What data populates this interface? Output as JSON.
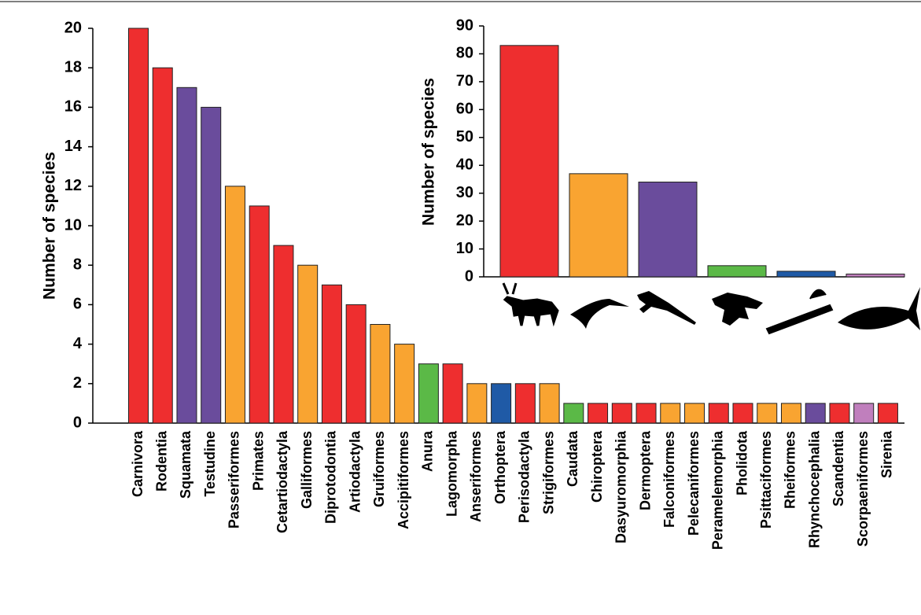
{
  "chart_data": [
    {
      "type": "bar",
      "y_label": "Number of species",
      "categories": [
        "Carnivora",
        "Rodentia",
        "Squamata",
        "Testudine",
        "Passeriformes",
        "Primates",
        "Cetartiodactyla",
        "Galliformes",
        "Diprotodontia",
        "Artiodactyla",
        "Gruiformes",
        "Accipitiformes",
        "Anura",
        "Lagomorpha",
        "Anseriformes",
        "Orthoptera",
        "Perisodactyla",
        "Strigiformes",
        "Caudata",
        "Chiroptera",
        "Dasyuromorphia",
        "Dermoptera",
        "Falconiformes",
        "Pelecaniformes",
        "Peramelemorphia",
        "Pholidota",
        "Psittaciformes",
        "Rheiformes",
        "Rhynchocephalia",
        "Scandentia",
        "Scorpaeniformes",
        "Sirenia"
      ],
      "values": [
        20,
        18,
        17,
        16,
        12,
        11,
        9,
        8,
        7,
        6,
        5,
        4,
        3,
        3,
        2,
        2,
        2,
        2,
        1,
        1,
        1,
        1,
        1,
        1,
        1,
        1,
        1,
        1,
        1,
        1,
        1,
        1
      ],
      "colors": [
        "#ee2e2f",
        "#ee2e2f",
        "#6a4c9c",
        "#6a4c9c",
        "#f9a431",
        "#ee2e2f",
        "#ee2e2f",
        "#f9a431",
        "#ee2e2f",
        "#ee2e2f",
        "#f9a431",
        "#f9a431",
        "#5bb947",
        "#ee2e2f",
        "#f9a431",
        "#1f5aa6",
        "#ee2e2f",
        "#f9a431",
        "#5bb947",
        "#ee2e2f",
        "#ee2e2f",
        "#ee2e2f",
        "#f9a431",
        "#f9a431",
        "#ee2e2f",
        "#ee2e2f",
        "#f9a431",
        "#f9a431",
        "#6a4c9c",
        "#ee2e2f",
        "#c07fbd",
        "#ee2e2f"
      ],
      "ylim": [
        0,
        20
      ],
      "yticks": [
        0,
        2,
        4,
        6,
        8,
        10,
        12,
        14,
        16,
        18,
        20
      ],
      "grid": false
    },
    {
      "type": "bar",
      "y_label": "Number of species",
      "categories": [
        null,
        null,
        null,
        null,
        null,
        null
      ],
      "values": [
        83,
        37,
        34,
        4,
        2,
        1
      ],
      "colors": [
        "#ee2e2f",
        "#f9a431",
        "#6a4c9c",
        "#5bb947",
        "#1f5aa6",
        "#c07fbd"
      ],
      "ylim": [
        0,
        90
      ],
      "yticks": [
        0,
        10,
        20,
        30,
        40,
        50,
        60,
        70,
        80,
        90
      ],
      "grid": false
    }
  ]
}
